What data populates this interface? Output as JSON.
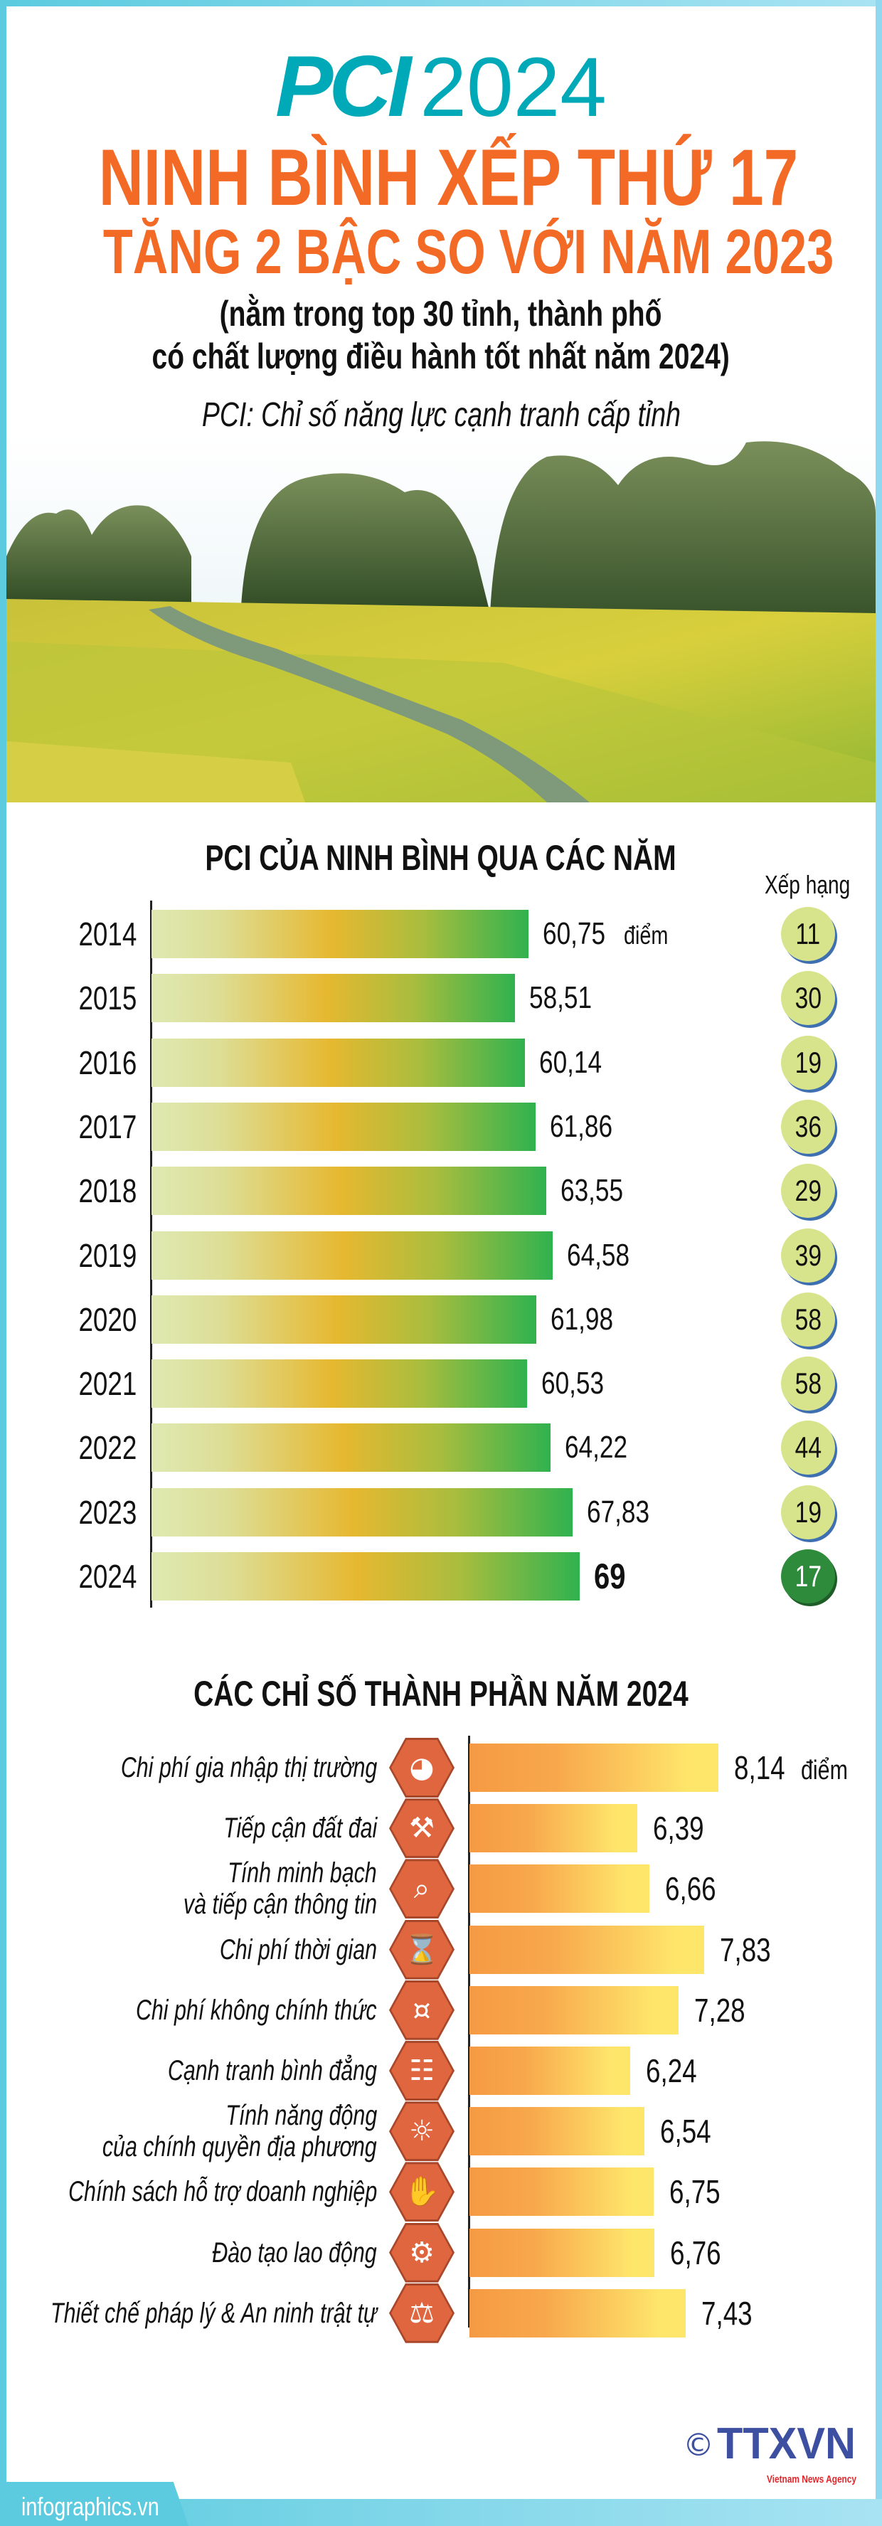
{
  "header": {
    "pci_logo": "PCI",
    "year": "2024",
    "headline": "NINH BÌNH XẾP THỨ 17",
    "subheadline": "TĂNG 2 BẬC SO VỚI NĂM 2023",
    "note_line1": "(nằm trong top 30 tỉnh, thành phố",
    "note_line2": "có chất lượng điều hành tốt nhất năm 2024)",
    "definition": "PCI: Chỉ số năng lực cạnh tranh cấp tỉnh"
  },
  "colors": {
    "brand_teal": "#00a9b7",
    "headline_orange": "#f26a26",
    "rank_circle": "#d8e48c",
    "rank_highlight": "#2e8b3c",
    "icon_hex": "#e0663f"
  },
  "chart_data": [
    {
      "type": "bar",
      "orientation": "horizontal",
      "title": "PCI CỦA NINH BÌNH QUA CÁC NĂM",
      "unit_label": "điểm",
      "rank_header": "Xếp hạng",
      "categories": [
        "2014",
        "2015",
        "2016",
        "2017",
        "2018",
        "2019",
        "2020",
        "2021",
        "2022",
        "2023",
        "2024"
      ],
      "values": [
        60.75,
        58.51,
        60.14,
        61.86,
        63.55,
        64.58,
        61.98,
        60.53,
        64.22,
        67.83,
        69
      ],
      "value_labels": [
        "60,75",
        "58,51",
        "60,14",
        "61,86",
        "63,55",
        "64,58",
        "61,98",
        "60,53",
        "64,22",
        "67,83",
        "69"
      ],
      "ranks": [
        "11",
        "30",
        "19",
        "36",
        "29",
        "39",
        "58",
        "58",
        "44",
        "19",
        "17"
      ]
    },
    {
      "type": "bar",
      "orientation": "horizontal",
      "title": "CÁC CHỈ SỐ THÀNH PHẦN NĂM 2024",
      "unit_label": "điểm",
      "categories": [
        {
          "line1": "Chi phí gia nhập thị trường",
          "line2": "",
          "icon": "market-entry-cost-icon",
          "glyph": "◕"
        },
        {
          "line1": "Tiếp cận đất đai",
          "line2": "",
          "icon": "shovel-land-icon",
          "glyph": "⚒"
        },
        {
          "line1": "Tính minh bạch",
          "line2": "và tiếp cận thông tin",
          "icon": "magnifier-chart-icon",
          "glyph": "⌕"
        },
        {
          "line1": "Chi phí thời gian",
          "line2": "",
          "icon": "hourglass-icon",
          "glyph": "⌛"
        },
        {
          "line1": "Chi phí không chính thức",
          "line2": "",
          "icon": "money-stack-icon",
          "glyph": "¤"
        },
        {
          "line1": "Cạnh tranh bình đẳng",
          "line2": "",
          "icon": "meeting-table-icon",
          "glyph": "☷"
        },
        {
          "line1": "Tính năng động",
          "line2": "của chính quyền địa phương",
          "icon": "lightbulb-icon",
          "glyph": "☼"
        },
        {
          "line1": "Chính sách hỗ trợ doanh nghiệp",
          "line2": "",
          "icon": "handshake-icon",
          "glyph": "✋"
        },
        {
          "line1": "Đào tạo lao động",
          "line2": "",
          "icon": "training-presentation-icon",
          "glyph": "⚙"
        },
        {
          "line1": "Thiết chế pháp lý & An ninh trật tự",
          "line2": "",
          "icon": "scales-justice-icon",
          "glyph": "⚖"
        }
      ],
      "values": [
        8.14,
        6.39,
        6.66,
        7.83,
        7.28,
        6.24,
        6.54,
        6.75,
        6.76,
        7.43
      ],
      "value_labels": [
        "8,14",
        "6,39",
        "6,66",
        "7,83",
        "7,28",
        "6,24",
        "6,54",
        "6,75",
        "6,76",
        "7,43"
      ]
    }
  ],
  "footer": {
    "site": "infographics.vn",
    "copyright": "©",
    "agency_logo": "TTXVN",
    "agency_tagline": "Vietnam News Agency"
  }
}
